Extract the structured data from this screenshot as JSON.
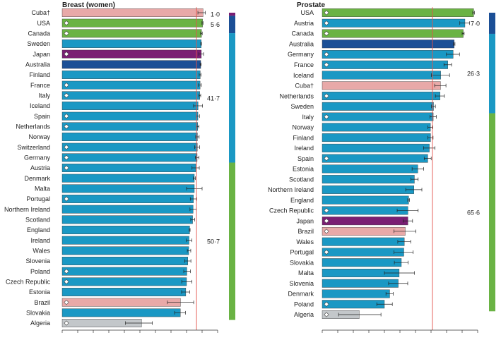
{
  "colors": {
    "green": "#6ab344",
    "cyan": "#1a98c4",
    "dark_blue": "#1b4f96",
    "purple": "#7a1e73",
    "pink": "#e8a9a8",
    "gray": "#c3c7ca",
    "reference_line": "#e2524a"
  },
  "chart_data": [
    {
      "type": "bar",
      "orientation": "horizontal",
      "title": "Breast (women)",
      "xlim": [
        0,
        100
      ],
      "reference_value": 86.4,
      "categories": [
        "Cuba†",
        "USA",
        "Canada",
        "Sweden",
        "Japan",
        "Australia",
        "Finland",
        "France",
        "Italy",
        "Iceland",
        "Spain",
        "Netherlands",
        "Norway",
        "Switzerland",
        "Germany",
        "Austria",
        "Denmark",
        "Malta",
        "Portugal",
        "Northern Ireland",
        "Scotland",
        "England",
        "Ireland",
        "Wales",
        "Slovenia",
        "Poland",
        "Czech Republic",
        "Estonia",
        "Brazil",
        "Slovakia",
        "Algeria"
      ],
      "values": [
        90.6,
        90.3,
        89.6,
        89.4,
        89.5,
        89.1,
        88.8,
        88.7,
        88.5,
        87.4,
        87.3,
        87.2,
        87.0,
        86.9,
        86.8,
        85.9,
        85.0,
        85.0,
        84.4,
        84.2,
        83.9,
        82.0,
        81.6,
        81.4,
        80.8,
        80.2,
        80.0,
        79.5,
        76.1,
        76.0,
        51.0
      ],
      "ci_low": [
        87.3,
        89.9,
        89.0,
        89.1,
        87.8,
        88.7,
        88.1,
        87.6,
        87.9,
        84.5,
        86.3,
        86.5,
        85.9,
        85.2,
        85.7,
        83.5,
        84.3,
        80.0,
        82.4,
        82.2,
        82.7,
        81.7,
        79.9,
        80.5,
        78.8,
        78.2,
        76.9,
        76.8,
        67.7,
        72.3,
        40.7
      ],
      "ci_high": [
        92.1,
        90.6,
        90.1,
        89.6,
        91.0,
        89.4,
        89.3,
        89.5,
        89.1,
        90.3,
        88.3,
        88.0,
        88.1,
        88.4,
        87.9,
        88.2,
        85.7,
        90.0,
        86.6,
        86.4,
        85.2,
        82.3,
        83.4,
        82.7,
        82.8,
        82.5,
        83.4,
        82.0,
        84.6,
        79.3,
        58.0
      ],
      "markers": [
        false,
        true,
        true,
        false,
        true,
        false,
        false,
        true,
        true,
        false,
        true,
        true,
        false,
        true,
        true,
        true,
        false,
        false,
        true,
        false,
        false,
        false,
        false,
        false,
        false,
        true,
        true,
        false,
        true,
        false,
        true
      ],
      "bar_colors": [
        "pink",
        "green",
        "green",
        "cyan",
        "purple",
        "dark_blue",
        "cyan",
        "cyan",
        "cyan",
        "cyan",
        "cyan",
        "cyan",
        "cyan",
        "cyan",
        "cyan",
        "cyan",
        "cyan",
        "cyan",
        "cyan",
        "cyan",
        "cyan",
        "cyan",
        "cyan",
        "cyan",
        "cyan",
        "cyan",
        "cyan",
        "cyan",
        "pink",
        "cyan",
        "gray"
      ],
      "legend_bar": {
        "segments": [
          {
            "label": "1·0",
            "fraction": 0.01,
            "color": "purple"
          },
          {
            "label": "5·6",
            "fraction": 0.056,
            "color": "dark_blue"
          },
          {
            "label": "41·7",
            "fraction": 0.417,
            "color": "cyan"
          },
          {
            "label": "50·7",
            "fraction": 0.507,
            "color": "green"
          }
        ]
      }
    },
    {
      "type": "bar",
      "orientation": "horizontal",
      "title": "Prostate",
      "xlim": [
        0,
        100
      ],
      "reference_value": 70.9,
      "categories": [
        "USA",
        "Austria",
        "Canada",
        "Australia",
        "Germany",
        "France",
        "Iceland",
        "Cuba†",
        "Netherlands",
        "Sweden",
        "Italy",
        "Norway",
        "Finland",
        "Ireland",
        "Spain",
        "Estonia",
        "Scotland",
        "Northern Ireland",
        "England",
        "Czech Republic",
        "Japan",
        "Brazil",
        "Wales",
        "Portugal",
        "Slovakia",
        "Malta",
        "Slovenia",
        "Denmark",
        "Poland",
        "Algeria"
      ],
      "values": [
        97.4,
        91.8,
        90.7,
        84.9,
        84.2,
        80.8,
        76.2,
        76.1,
        75.8,
        71.6,
        71.4,
        69.6,
        69.7,
        68.9,
        67.9,
        61.5,
        59.3,
        59.0,
        55.6,
        55.1,
        55.1,
        53.4,
        52.8,
        52.5,
        50.9,
        49.5,
        48.9,
        43.4,
        40.0,
        23.8
      ],
      "ci_low": [
        96.8,
        88.5,
        90.0,
        84.4,
        79.9,
        78.3,
        70.2,
        72.3,
        72.8,
        70.3,
        69.3,
        68.0,
        68.0,
        65.2,
        65.6,
        57.8,
        57.1,
        53.7,
        55.0,
        48.2,
        52.0,
        46.1,
        48.6,
        46.2,
        46.4,
        40.0,
        42.7,
        41.0,
        35.1,
        10.5
      ],
      "ci_high": [
        97.9,
        94.8,
        91.3,
        85.4,
        88.3,
        83.2,
        81.9,
        79.6,
        78.6,
        72.8,
        73.4,
        71.2,
        71.3,
        72.5,
        70.1,
        65.3,
        61.7,
        64.1,
        56.2,
        61.7,
        58.1,
        60.3,
        56.9,
        58.5,
        55.3,
        59.3,
        55.0,
        45.7,
        45.1,
        37.8
      ],
      "markers": [
        true,
        true,
        true,
        false,
        true,
        true,
        false,
        false,
        true,
        false,
        true,
        false,
        false,
        false,
        true,
        false,
        false,
        false,
        false,
        true,
        true,
        true,
        false,
        true,
        false,
        false,
        false,
        false,
        true,
        true
      ],
      "bar_colors": [
        "green",
        "cyan",
        "green",
        "dark_blue",
        "cyan",
        "cyan",
        "cyan",
        "pink",
        "cyan",
        "cyan",
        "cyan",
        "cyan",
        "cyan",
        "cyan",
        "cyan",
        "cyan",
        "cyan",
        "cyan",
        "cyan",
        "cyan",
        "purple",
        "pink",
        "cyan",
        "cyan",
        "cyan",
        "cyan",
        "cyan",
        "cyan",
        "cyan",
        "gray"
      ],
      "legend_bar": {
        "segments": [
          {
            "label": "7·0",
            "fraction": 0.07,
            "color": "dark_blue"
          },
          {
            "label": "26·3",
            "fraction": 0.263,
            "color": "cyan"
          },
          {
            "label": "65·6",
            "fraction": 0.656,
            "color": "green"
          }
        ]
      }
    }
  ]
}
